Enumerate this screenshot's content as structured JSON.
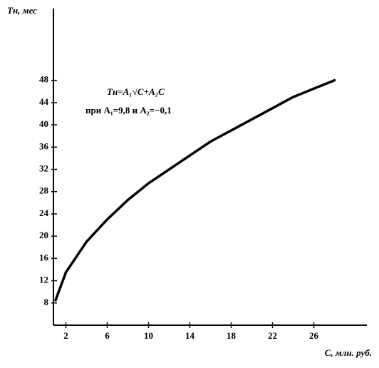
{
  "chart_data": {
    "type": "line",
    "y_label": "Tн, мес",
    "x_label": "C, млн. руб.",
    "annotation_formula": "Tн=A₁√C+A₂C",
    "annotation_params": "при A₁=9,8 и A₂=−0,1",
    "x": [
      1,
      2,
      4,
      6,
      8,
      10,
      12,
      14,
      16,
      18,
      20,
      22,
      24,
      26,
      28
    ],
    "values": [
      8.5,
      13.5,
      19,
      23,
      26.5,
      29.5,
      32,
      34.5,
      37,
      39,
      41,
      43,
      45,
      46.5,
      48
    ],
    "color": "#000000",
    "xlim": [
      1,
      30
    ],
    "xticks": [
      2,
      6,
      10,
      14,
      18,
      22,
      26
    ],
    "ylim": [
      4,
      60
    ],
    "yticks": [
      8,
      12,
      16,
      20,
      24,
      28,
      32,
      36,
      40,
      44,
      48
    ]
  }
}
